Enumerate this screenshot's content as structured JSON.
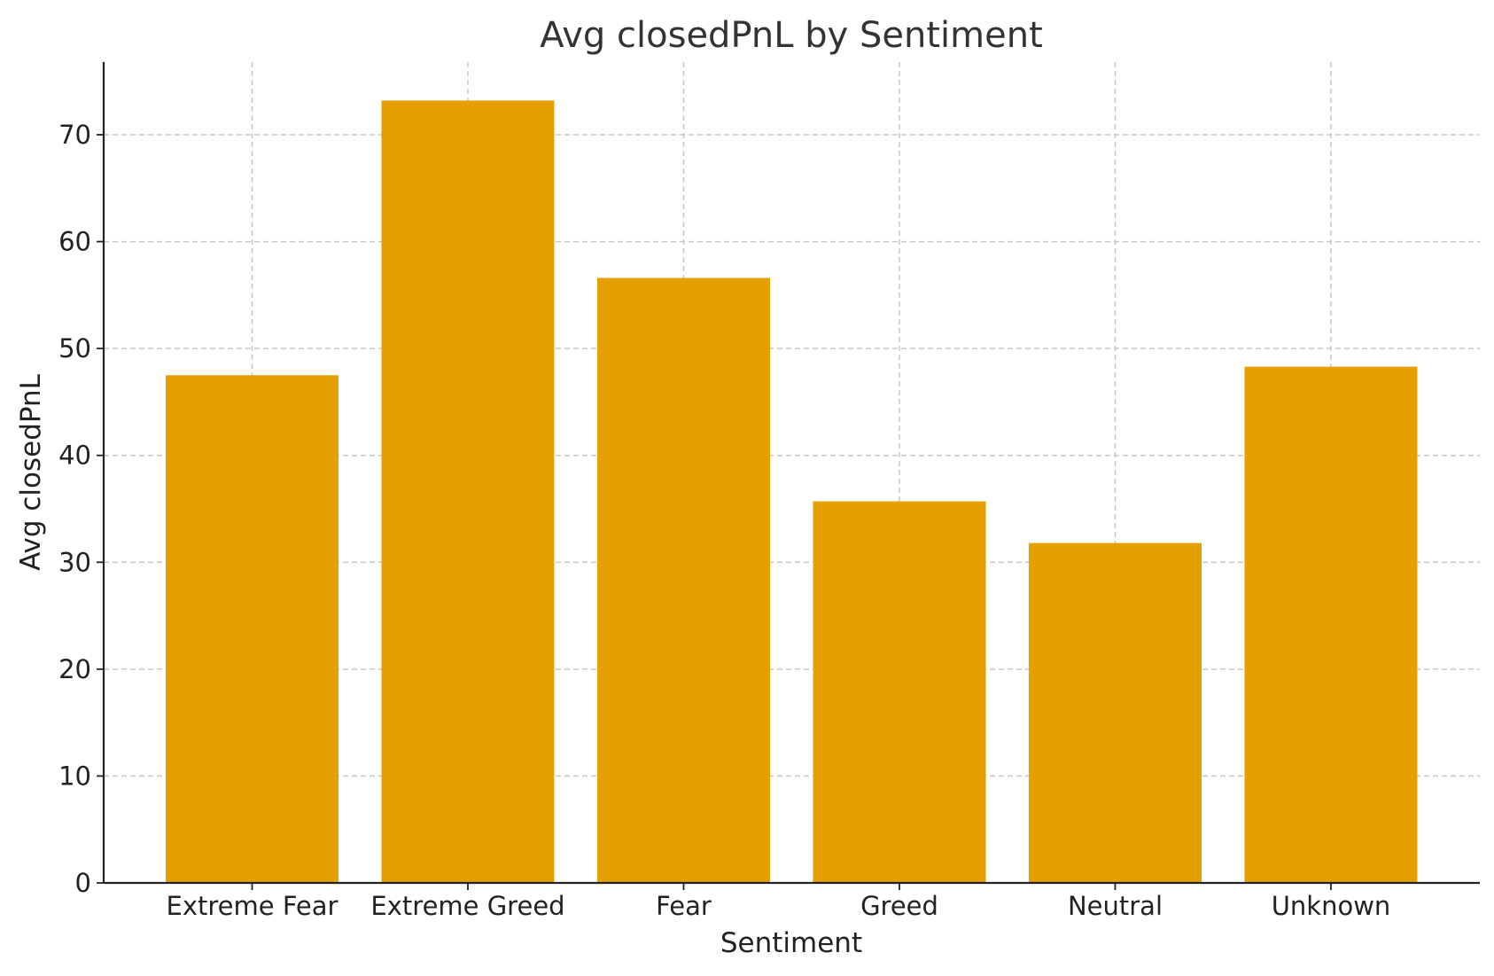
{
  "chart_data": {
    "type": "bar",
    "title": "Avg closedPnL by Sentiment",
    "xlabel": "Sentiment",
    "ylabel": "Avg closedPnL",
    "categories": [
      "Extreme Fear",
      "Extreme Greed",
      "Fear",
      "Greed",
      "Neutral",
      "Unknown"
    ],
    "values": [
      47.5,
      73.2,
      56.6,
      35.7,
      31.8,
      48.3
    ],
    "ylim": [
      0,
      76.8
    ],
    "yticks": [
      0,
      10,
      20,
      30,
      40,
      50,
      60,
      70
    ],
    "grid": true,
    "bar_color": "#E5A000"
  }
}
